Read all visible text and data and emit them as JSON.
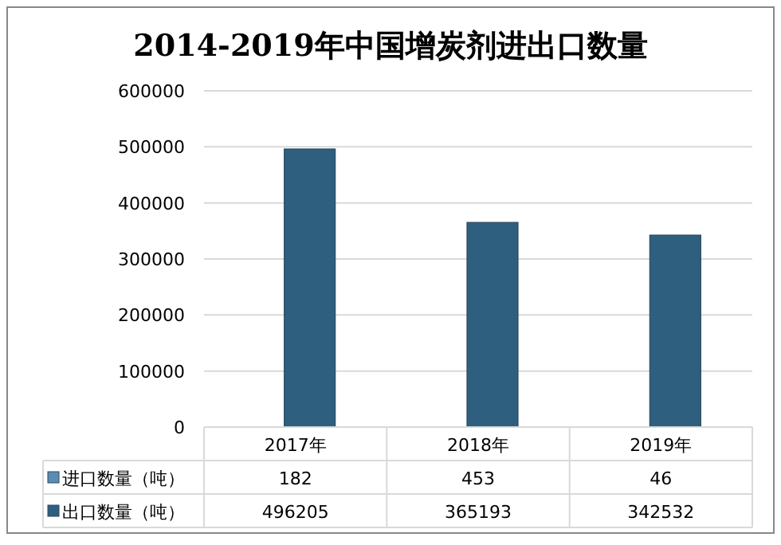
{
  "chart_data": {
    "type": "bar",
    "title": "2014-2019年中国增炭剂进出口数量",
    "categories": [
      "2017年",
      "2018年",
      "2019年"
    ],
    "series": [
      {
        "name": "进口数量（吨）",
        "color": "#5a8db3",
        "values": [
          182,
          453,
          46
        ]
      },
      {
        "name": "出口数量（吨）",
        "color": "#2f5f7f",
        "values": [
          496205,
          365193,
          342532
        ]
      }
    ],
    "ylim": [
      0,
      600000
    ],
    "yticks": [
      0,
      100000,
      200000,
      300000,
      400000,
      500000,
      600000
    ],
    "grid": "y",
    "legend": "bottom",
    "data_labels": true
  }
}
